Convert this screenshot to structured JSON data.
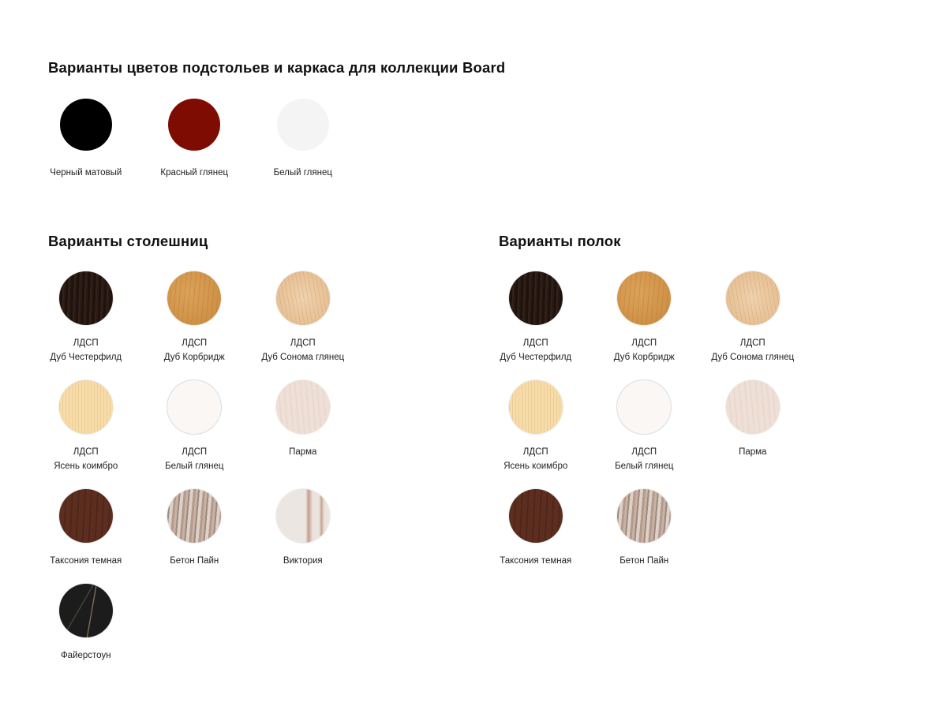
{
  "frame_section": {
    "title": "Варианты цветов подстольев и каркаса для коллекции Board",
    "items": [
      {
        "lines": [
          "Черный матовый"
        ],
        "texture": "black",
        "color": "#000000"
      },
      {
        "lines": [
          "Красный глянец"
        ],
        "texture": "red",
        "color": "#7e0c03"
      },
      {
        "lines": [
          "Белый глянец"
        ],
        "texture": "whiteg",
        "color": "#f4f4f4"
      }
    ]
  },
  "tabletops_section": {
    "title": "Варианты столешниц",
    "items": [
      {
        "lines": [
          "ЛДСП",
          "Дуб Честерфилд"
        ],
        "texture": "chesterfield"
      },
      {
        "lines": [
          "ЛДСП",
          "Дуб Корбридж"
        ],
        "texture": "corbridge"
      },
      {
        "lines": [
          "ЛДСП",
          "Дуб Сонома глянец"
        ],
        "texture": "sonoma"
      },
      {
        "lines": [
          "ЛДСП",
          "Ясень коимбро"
        ],
        "texture": "coimbro"
      },
      {
        "lines": [
          "ЛДСП",
          "Белый глянец"
        ],
        "texture": "whiteldsp"
      },
      {
        "lines": [
          "Парма"
        ],
        "texture": "parma"
      },
      {
        "lines": [
          "Таксония темная"
        ],
        "texture": "taxonia"
      },
      {
        "lines": [
          "Бетон Пайн"
        ],
        "texture": "beton"
      },
      {
        "lines": [
          "Виктория"
        ],
        "texture": "victoria"
      },
      {
        "lines": [
          "Файерстоун"
        ],
        "texture": "firestone"
      }
    ]
  },
  "shelves_section": {
    "title": "Варианты полок",
    "items": [
      {
        "lines": [
          "ЛДСП",
          "Дуб Честерфилд"
        ],
        "texture": "chesterfield"
      },
      {
        "lines": [
          "ЛДСП",
          "Дуб Корбридж"
        ],
        "texture": "corbridge"
      },
      {
        "lines": [
          "ЛДСП",
          "Дуб Сонома глянец"
        ],
        "texture": "sonoma"
      },
      {
        "lines": [
          "ЛДСП",
          "Ясень коимбро"
        ],
        "texture": "coimbro"
      },
      {
        "lines": [
          "ЛДСП",
          "Белый глянец"
        ],
        "texture": "whiteldsp"
      },
      {
        "lines": [
          "Парма"
        ],
        "texture": "parma"
      },
      {
        "lines": [
          "Таксония темная"
        ],
        "texture": "taxonia"
      },
      {
        "lines": [
          "Бетон Пайн"
        ],
        "texture": "beton"
      }
    ]
  }
}
